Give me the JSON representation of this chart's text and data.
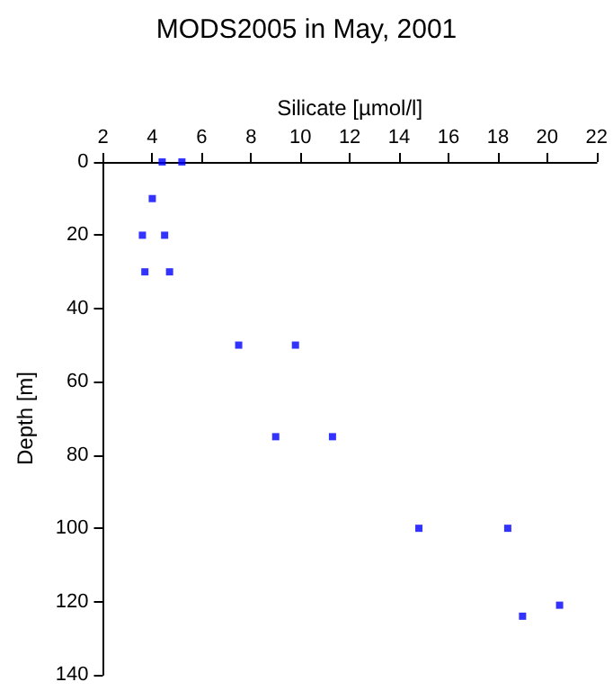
{
  "chart_data": {
    "type": "scatter",
    "title": "MODS2005 in May, 2001",
    "xlabel": "Silicate [µmol/l]",
    "ylabel": "Depth [m]",
    "series": [
      {
        "color": "#0000ff",
        "x": [
          4.4,
          5.2,
          4.0,
          3.6,
          4.5,
          3.7,
          4.7,
          7.5,
          9.8,
          9.0,
          11.3,
          14.8,
          18.4,
          19.0,
          20.5
        ],
        "values": [
          0,
          0,
          10,
          20,
          20,
          30,
          30,
          50,
          50,
          75,
          75,
          100,
          100,
          124,
          121
        ]
      }
    ],
    "xlim": [
      2,
      22
    ],
    "xticks": [
      2,
      4,
      6,
      8,
      10,
      12,
      14,
      16,
      18,
      20,
      22
    ],
    "ylim": [
      140,
      0
    ],
    "yticks": [
      0,
      20,
      40,
      60,
      80,
      100,
      120,
      140
    ],
    "marker": "square",
    "grid": false
  }
}
